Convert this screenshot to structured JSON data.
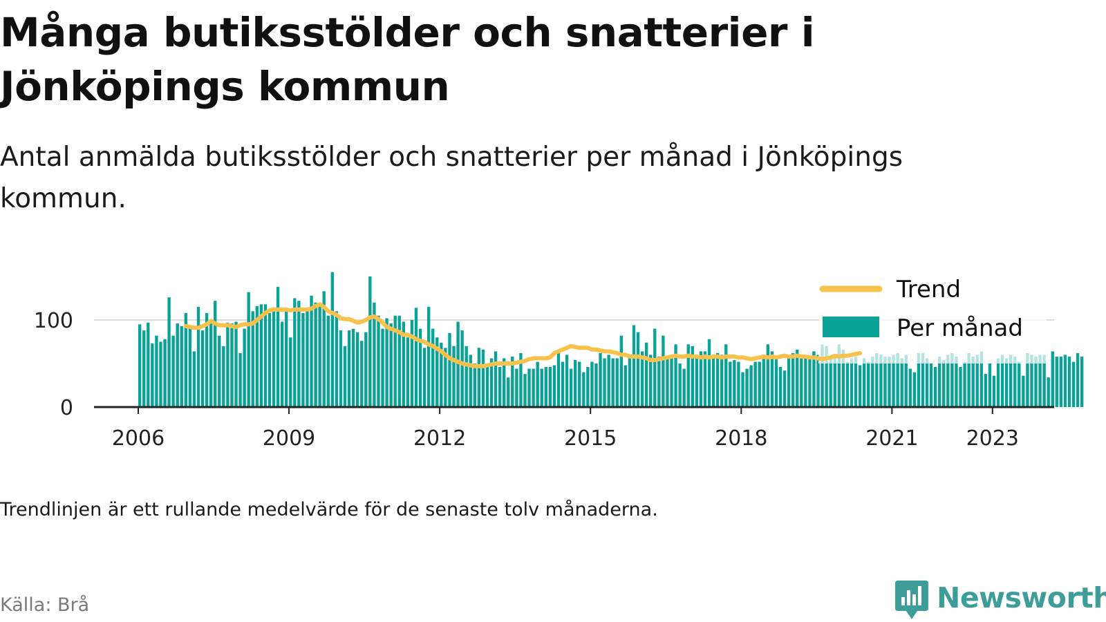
{
  "title": "Många butiksstölder och snatterier i Jönköpings kommun",
  "subtitle": "Antal anmälda butiksstölder och snatterier per månad i Jönköpings kommun.",
  "note": "Trendlinjen är ett rullande medelvärde för de senaste tolv månaderna.",
  "source": "Källa: Brå",
  "brand": {
    "name": "Newsworthy",
    "icon": "newsworthy-bar-chart-icon",
    "color": "#3d9e99"
  },
  "colors": {
    "bars": "#0aa296",
    "trend": "#f7c14c",
    "axis": "#222222",
    "grid": "#dddddd"
  },
  "chart_data": {
    "type": "bar",
    "x_start": "2006-01",
    "x_end": "2023-04",
    "x_ticks": [
      "2006",
      "2009",
      "2012",
      "2015",
      "2018",
      "2021",
      "2023"
    ],
    "y_ticks": [
      0,
      100
    ],
    "ylim": [
      0,
      160
    ],
    "grid": "horizontal",
    "legend_position": "top-right",
    "legend": [
      {
        "name": "Trend",
        "kind": "line"
      },
      {
        "name": "Per månad",
        "kind": "bar"
      }
    ],
    "series": [
      {
        "name": "Per månad",
        "kind": "bar",
        "values": [
          95,
          88,
          97,
          73,
          82,
          75,
          78,
          126,
          82,
          96,
          93,
          108,
          92,
          64,
          115,
          88,
          108,
          96,
          122,
          82,
          70,
          97,
          96,
          98,
          62,
          90,
          132,
          110,
          116,
          118,
          118,
          108,
          112,
          138,
          98,
          112,
          80,
          125,
          122,
          108,
          110,
          128,
          120,
          118,
          133,
          105,
          155,
          110,
          88,
          70,
          88,
          90,
          86,
          76,
          86,
          150,
          120,
          105,
          90,
          102,
          96,
          105,
          105,
          98,
          80,
          100,
          114,
          90,
          68,
          115,
          90,
          80,
          74,
          68,
          85,
          70,
          98,
          88,
          70,
          60,
          50,
          68,
          66,
          50,
          56,
          64,
          46,
          56,
          34,
          58,
          44,
          62,
          38,
          44,
          44,
          52,
          44,
          46,
          46,
          48,
          64,
          52,
          60,
          44,
          54,
          52,
          40,
          46,
          52,
          50,
          62,
          56,
          60,
          56,
          56,
          82,
          48,
          56,
          94,
          86,
          64,
          74,
          60,
          90,
          58,
          82,
          58,
          60,
          72,
          50,
          44,
          72,
          70,
          60,
          64,
          64,
          78,
          60,
          62,
          60,
          72,
          52,
          54,
          52,
          40,
          44,
          48,
          52,
          52,
          56,
          72,
          64,
          56,
          46,
          42,
          60,
          62,
          66,
          58,
          56,
          58,
          64,
          60,
          72,
          70,
          56,
          58,
          72,
          66,
          52,
          56,
          58,
          48,
          56,
          52,
          58,
          62,
          60,
          58,
          58,
          60,
          62,
          56,
          60,
          44,
          40,
          62,
          62,
          56,
          50,
          46,
          58,
          54,
          60,
          62,
          58,
          46,
          52,
          62,
          58,
          60,
          64,
          38,
          50,
          36,
          56,
          60,
          56,
          60,
          58,
          52,
          36,
          62,
          60,
          58,
          60,
          60,
          34,
          64,
          58,
          58,
          60,
          58,
          52,
          62,
          58
        ]
      },
      {
        "name": "Trend",
        "kind": "line",
        "start": "2006-12",
        "values": [
          93,
          92,
          91,
          91,
          93,
          95,
          99,
          96,
          94,
          94,
          94,
          93,
          92,
          94,
          95,
          95,
          96,
          100,
          104,
          108,
          111,
          112,
          112,
          112,
          112,
          111,
          112,
          112,
          112,
          112,
          113,
          116,
          118,
          115,
          110,
          108,
          106,
          102,
          101,
          101,
          99,
          97,
          98,
          100,
          103,
          104,
          101,
          97,
          92,
          90,
          88,
          86,
          83,
          83,
          81,
          78,
          76,
          75,
          72,
          70,
          67,
          64,
          60,
          56,
          54,
          52,
          50,
          49,
          48,
          47,
          47,
          47,
          48,
          49,
          50,
          50,
          50,
          50,
          50,
          51,
          52,
          53,
          55,
          56,
          56,
          56,
          56,
          57,
          62,
          64,
          66,
          68,
          70,
          69,
          68,
          68,
          68,
          66,
          66,
          65,
          64,
          64,
          63,
          62,
          60,
          60,
          58,
          58,
          58,
          57,
          56,
          54,
          54,
          55,
          56,
          57,
          58,
          59,
          58,
          58,
          59,
          58,
          58,
          57,
          58,
          57,
          58,
          58,
          57,
          58,
          58,
          58,
          57,
          57,
          56,
          55,
          56,
          57,
          58,
          57,
          58,
          57,
          58,
          59,
          58,
          58,
          59,
          58,
          58,
          57,
          57,
          56,
          55,
          56,
          57,
          59,
          58,
          59,
          59,
          60,
          61,
          62
        ]
      }
    ]
  }
}
